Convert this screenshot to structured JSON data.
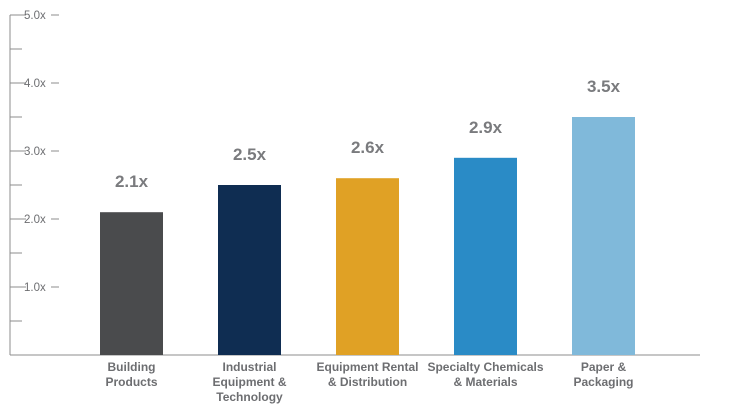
{
  "chart_data": {
    "type": "bar",
    "categories": [
      [
        "Building",
        "Products"
      ],
      [
        "Industrial",
        "Equipment &",
        "Technology"
      ],
      [
        "Equipment Rental",
        "& Distribution"
      ],
      [
        "Specialty Chemicals",
        "& Materials"
      ],
      [
        "Paper &",
        "Packaging"
      ]
    ],
    "values": [
      2.1,
      2.5,
      2.6,
      2.9,
      3.5
    ],
    "data_labels": [
      "2.1x",
      "2.5x",
      "2.6x",
      "2.9x",
      "3.5x"
    ],
    "colors": [
      "#4a4b4d",
      "#0f2d52",
      "#e0a125",
      "#2a8bc6",
      "#80b9da"
    ],
    "ylim": [
      0,
      5.0
    ],
    "yticks": [
      {
        "value": 1.0,
        "label": "1.0x"
      },
      {
        "value": 2.0,
        "label": "2.0x"
      },
      {
        "value": 3.0,
        "label": "3.0x"
      },
      {
        "value": 4.0,
        "label": "4.0x"
      },
      {
        "value": 5.0,
        "label": "5.0x"
      }
    ],
    "title": "",
    "xlabel": "",
    "ylabel": "",
    "grid": false,
    "axis_color": "#8c8c8c"
  }
}
